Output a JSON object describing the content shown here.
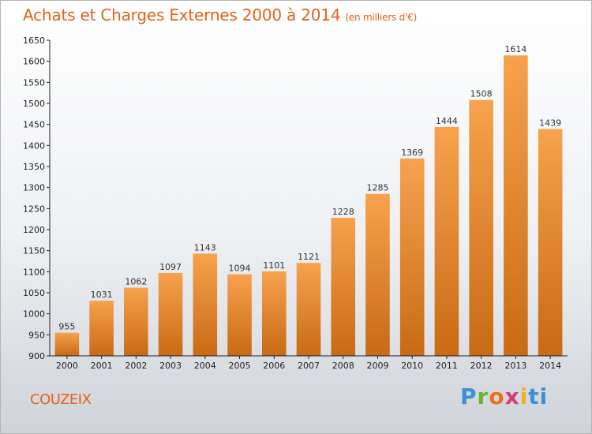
{
  "header": {
    "title": "Achats et Charges Externes 2000 à 2014",
    "unit": "(en milliers d'€)"
  },
  "footer": {
    "commune": "COUZEIX",
    "logo": "Proxiti"
  },
  "colors": {
    "title": "#e0631d",
    "bar_light": "#f7a24e",
    "bar_dark": "#c96a14",
    "axis": "#222222"
  },
  "chart_data": {
    "type": "bar",
    "title": "Achats et Charges Externes 2000 à 2014",
    "xlabel": "",
    "ylabel": "",
    "categories": [
      "2000",
      "2001",
      "2002",
      "2003",
      "2004",
      "2005",
      "2006",
      "2007",
      "2008",
      "2009",
      "2010",
      "2011",
      "2012",
      "2013",
      "2014"
    ],
    "values": [
      955,
      1031,
      1062,
      1097,
      1143,
      1094,
      1101,
      1121,
      1228,
      1285,
      1369,
      1444,
      1508,
      1614,
      1439
    ],
    "ylim": [
      900,
      1650
    ],
    "yticks": [
      900,
      950,
      1000,
      1050,
      1100,
      1150,
      1200,
      1250,
      1300,
      1350,
      1400,
      1450,
      1500,
      1550,
      1600,
      1650
    ],
    "grid": false,
    "legend": "none"
  }
}
